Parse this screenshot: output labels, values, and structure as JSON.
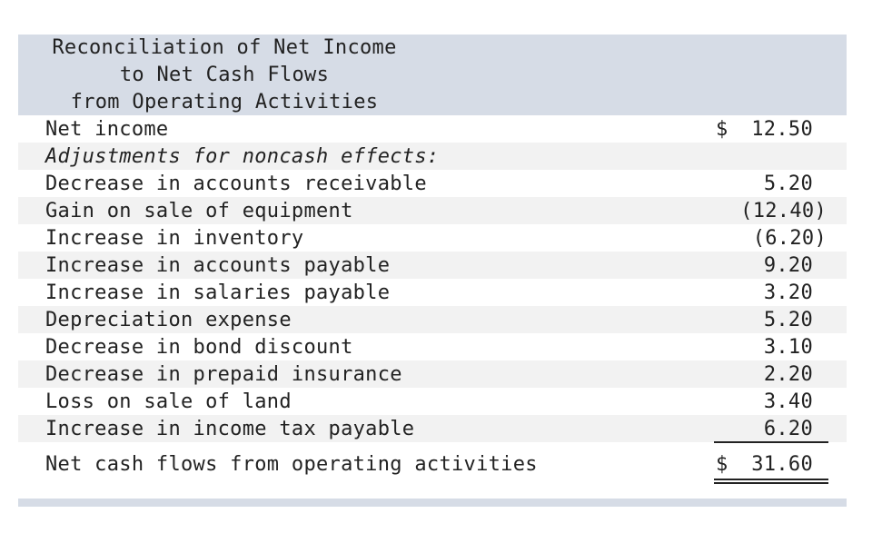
{
  "header": {
    "line1": "Reconciliation of Net Income",
    "line2": "to Net Cash Flows",
    "line3": "from Operating Activities"
  },
  "rows": [
    {
      "label": "Net income",
      "value": "12.50",
      "dollar": "$"
    },
    {
      "label": "Adjustments for noncash effects:",
      "value": ""
    },
    {
      "label": "Decrease in accounts receivable",
      "value": "5.20"
    },
    {
      "label": "Gain on sale of equipment",
      "value": "(12.40)"
    },
    {
      "label": "Increase in inventory",
      "value": "(6.20)"
    },
    {
      "label": "Increase in accounts payable",
      "value": "9.20"
    },
    {
      "label": "Increase in salaries payable",
      "value": "3.20"
    },
    {
      "label": "Depreciation expense",
      "value": "5.20"
    },
    {
      "label": "Decrease in bond discount",
      "value": "3.10"
    },
    {
      "label": "Decrease in prepaid insurance",
      "value": "2.20"
    },
    {
      "label": "Loss on sale of land",
      "value": "3.40"
    },
    {
      "label": "Increase in income tax payable",
      "value": "6.20"
    }
  ],
  "total": {
    "label": "Net cash flows from operating activities",
    "dollar": "$",
    "value": "31.60"
  }
}
